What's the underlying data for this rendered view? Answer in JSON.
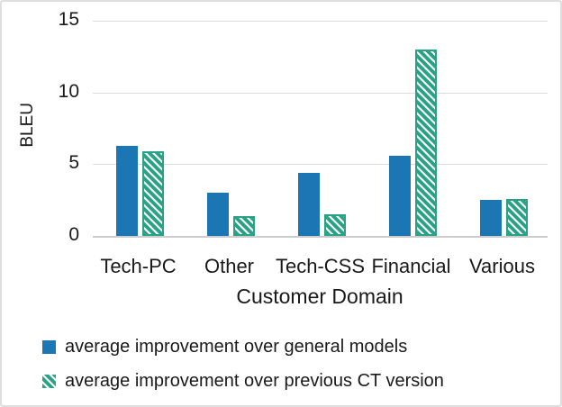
{
  "chart_data": {
    "type": "bar",
    "categories": [
      "Tech-PC",
      "Other",
      "Tech-CSS",
      "Financial",
      "Various"
    ],
    "series": [
      {
        "name": "average improvement over general models",
        "values": [
          6.3,
          3.0,
          4.4,
          5.6,
          2.5
        ],
        "color": "#1d76b4",
        "pattern": "solid"
      },
      {
        "name": "average improvement over previous CT version",
        "values": [
          5.9,
          1.4,
          1.5,
          13.0,
          2.6
        ],
        "color": "#2aa286",
        "pattern": "diagonal-stripes"
      }
    ],
    "title": "",
    "xlabel": "Customer Domain",
    "ylabel": "BLEU",
    "ylim": [
      0,
      15
    ],
    "yticks": [
      0,
      5,
      10,
      15
    ],
    "grid": "horizontal",
    "legend_position": "bottom-left"
  }
}
